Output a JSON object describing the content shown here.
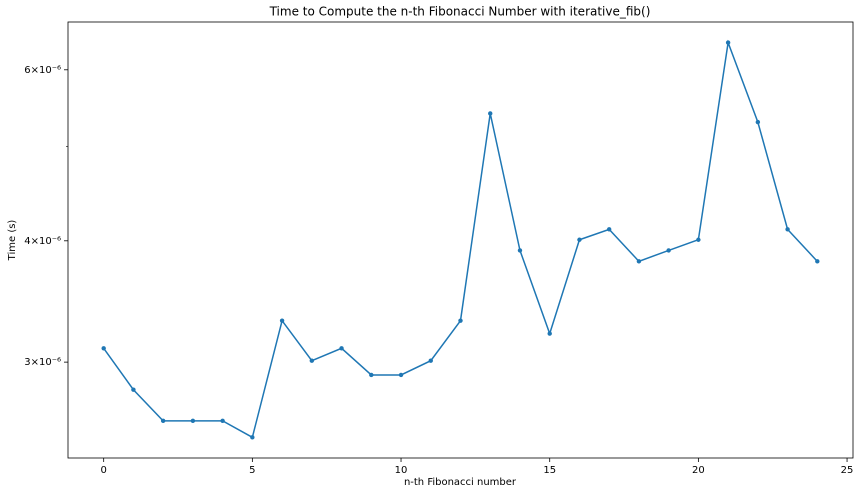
{
  "chart_data": {
    "type": "line",
    "title": "Time to Compute the n-th Fibonacci Number with iterative_fib()",
    "x_label": "n-th Fibonacci number",
    "y_label": "Time (s)",
    "x": [
      0,
      1,
      2,
      3,
      4,
      5,
      6,
      7,
      8,
      9,
      10,
      11,
      12,
      13,
      14,
      15,
      16,
      17,
      18,
      19,
      20,
      21,
      22,
      23,
      24
    ],
    "series": [
      {
        "name": "iterative_fib",
        "color": "#1f77b4",
        "values": [
          3.1e-06,
          2.81e-06,
          2.61e-06,
          2.61e-06,
          2.61e-06,
          2.51e-06,
          3.31e-06,
          3.01e-06,
          3.1e-06,
          2.91e-06,
          2.91e-06,
          3.01e-06,
          3.31e-06,
          5.41e-06,
          3.91e-06,
          3.21e-06,
          4.01e-06,
          4.11e-06,
          3.81e-06,
          3.91e-06,
          4.01e-06,
          6.4e-06,
          5.3e-06,
          4.11e-06,
          3.81e-06
        ]
      }
    ],
    "xlim": [
      -1.2,
      25.2
    ],
    "xticks": [
      0,
      5,
      10,
      15,
      20,
      25
    ],
    "ylim": [
      2.39e-06,
      6.72e-06
    ],
    "yscale": "log",
    "yticks": [
      {
        "value": 3e-06,
        "label": "3×10⁻⁶"
      },
      {
        "value": 4e-06,
        "label": "4×10⁻⁶"
      },
      {
        "value": 6e-06,
        "label": "6×10⁻⁶"
      }
    ],
    "minor_yticks": [
      5e-06
    ],
    "grid": false
  }
}
